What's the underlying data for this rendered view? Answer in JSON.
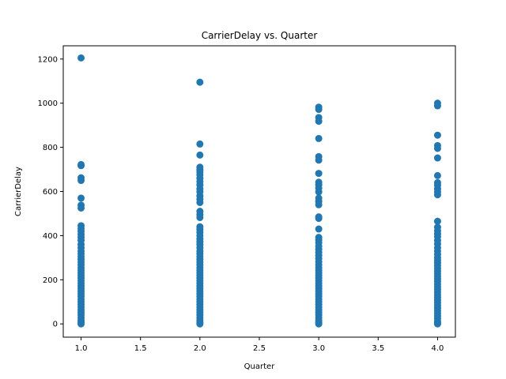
{
  "chart_data": {
    "type": "scatter",
    "title": "CarrierDelay vs. Quarter",
    "xlabel": "Quarter",
    "ylabel": "CarrierDelay",
    "xlim": [
      0.85,
      4.15
    ],
    "ylim": [
      -60,
      1260
    ],
    "xticks": [
      1.0,
      1.5,
      2.0,
      2.5,
      3.0,
      3.5,
      4.0
    ],
    "xtick_labels": [
      "1.0",
      "1.5",
      "2.0",
      "2.5",
      "3.0",
      "3.5",
      "4.0"
    ],
    "yticks": [
      0,
      200,
      400,
      600,
      800,
      1000,
      1200
    ],
    "ytick_labels": [
      "0",
      "200",
      "400",
      "600",
      "800",
      "1000",
      "1200"
    ],
    "grid": false,
    "legend": "none",
    "marker_color": "#1f77b4",
    "series": [
      {
        "points": [
          [
            1.0,
            1205
          ],
          [
            1.0,
            722
          ],
          [
            1.0,
            717
          ],
          [
            1.0,
            662
          ],
          [
            1.0,
            650
          ],
          [
            1.0,
            570
          ],
          [
            1.0,
            538
          ],
          [
            1.0,
            525
          ],
          [
            1.0,
            445
          ],
          [
            1.0,
            432
          ],
          [
            1.0,
            420
          ],
          [
            1.0,
            405
          ],
          [
            1.0,
            392
          ],
          [
            1.0,
            378
          ],
          [
            1.0,
            360
          ],
          [
            1.0,
            345
          ],
          [
            1.0,
            330
          ],
          [
            1.0,
            318
          ],
          [
            1.0,
            305
          ],
          [
            1.0,
            292
          ],
          [
            1.0,
            280
          ],
          [
            1.0,
            268
          ],
          [
            1.0,
            255
          ],
          [
            1.0,
            243
          ],
          [
            1.0,
            232
          ],
          [
            1.0,
            220
          ],
          [
            1.0,
            208
          ],
          [
            1.0,
            196
          ],
          [
            1.0,
            184
          ],
          [
            1.0,
            172
          ],
          [
            1.0,
            160
          ],
          [
            1.0,
            148
          ],
          [
            1.0,
            136
          ],
          [
            1.0,
            124
          ],
          [
            1.0,
            112
          ],
          [
            1.0,
            100
          ],
          [
            1.0,
            88
          ],
          [
            1.0,
            76
          ],
          [
            1.0,
            64
          ],
          [
            1.0,
            52
          ],
          [
            1.0,
            40
          ],
          [
            1.0,
            28
          ],
          [
            1.0,
            16
          ],
          [
            1.0,
            6
          ],
          [
            1.0,
            0
          ],
          [
            2.0,
            1095
          ],
          [
            2.0,
            815
          ],
          [
            2.0,
            765
          ],
          [
            2.0,
            710
          ],
          [
            2.0,
            698
          ],
          [
            2.0,
            688
          ],
          [
            2.0,
            676
          ],
          [
            2.0,
            660
          ],
          [
            2.0,
            645
          ],
          [
            2.0,
            630
          ],
          [
            2.0,
            612
          ],
          [
            2.0,
            598
          ],
          [
            2.0,
            580
          ],
          [
            2.0,
            565
          ],
          [
            2.0,
            550
          ],
          [
            2.0,
            510
          ],
          [
            2.0,
            495
          ],
          [
            2.0,
            482
          ],
          [
            2.0,
            440
          ],
          [
            2.0,
            428
          ],
          [
            2.0,
            415
          ],
          [
            2.0,
            400
          ],
          [
            2.0,
            385
          ],
          [
            2.0,
            372
          ],
          [
            2.0,
            360
          ],
          [
            2.0,
            345
          ],
          [
            2.0,
            330
          ],
          [
            2.0,
            318
          ],
          [
            2.0,
            305
          ],
          [
            2.0,
            292
          ],
          [
            2.0,
            280
          ],
          [
            2.0,
            268
          ],
          [
            2.0,
            255
          ],
          [
            2.0,
            243
          ],
          [
            2.0,
            232
          ],
          [
            2.0,
            220
          ],
          [
            2.0,
            208
          ],
          [
            2.0,
            196
          ],
          [
            2.0,
            184
          ],
          [
            2.0,
            172
          ],
          [
            2.0,
            160
          ],
          [
            2.0,
            148
          ],
          [
            2.0,
            136
          ],
          [
            2.0,
            124
          ],
          [
            2.0,
            112
          ],
          [
            2.0,
            100
          ],
          [
            2.0,
            88
          ],
          [
            2.0,
            76
          ],
          [
            2.0,
            64
          ],
          [
            2.0,
            52
          ],
          [
            2.0,
            40
          ],
          [
            2.0,
            28
          ],
          [
            2.0,
            16
          ],
          [
            2.0,
            6
          ],
          [
            2.0,
            0
          ],
          [
            3.0,
            982
          ],
          [
            3.0,
            972
          ],
          [
            3.0,
            935
          ],
          [
            3.0,
            918
          ],
          [
            3.0,
            840
          ],
          [
            3.0,
            758
          ],
          [
            3.0,
            742
          ],
          [
            3.0,
            682
          ],
          [
            3.0,
            642
          ],
          [
            3.0,
            630
          ],
          [
            3.0,
            615
          ],
          [
            3.0,
            598
          ],
          [
            3.0,
            570
          ],
          [
            3.0,
            555
          ],
          [
            3.0,
            540
          ],
          [
            3.0,
            485
          ],
          [
            3.0,
            478
          ],
          [
            3.0,
            430
          ],
          [
            3.0,
            392
          ],
          [
            3.0,
            380
          ],
          [
            3.0,
            368
          ],
          [
            3.0,
            352
          ],
          [
            3.0,
            338
          ],
          [
            3.0,
            324
          ],
          [
            3.0,
            310
          ],
          [
            3.0,
            296
          ],
          [
            3.0,
            282
          ],
          [
            3.0,
            268
          ],
          [
            3.0,
            255
          ],
          [
            3.0,
            243
          ],
          [
            3.0,
            232
          ],
          [
            3.0,
            220
          ],
          [
            3.0,
            208
          ],
          [
            3.0,
            196
          ],
          [
            3.0,
            184
          ],
          [
            3.0,
            172
          ],
          [
            3.0,
            160
          ],
          [
            3.0,
            148
          ],
          [
            3.0,
            136
          ],
          [
            3.0,
            124
          ],
          [
            3.0,
            112
          ],
          [
            3.0,
            100
          ],
          [
            3.0,
            88
          ],
          [
            3.0,
            76
          ],
          [
            3.0,
            64
          ],
          [
            3.0,
            52
          ],
          [
            3.0,
            40
          ],
          [
            3.0,
            28
          ],
          [
            3.0,
            16
          ],
          [
            3.0,
            6
          ],
          [
            3.0,
            0
          ],
          [
            4.0,
            1000
          ],
          [
            4.0,
            988
          ],
          [
            4.0,
            855
          ],
          [
            4.0,
            808
          ],
          [
            4.0,
            795
          ],
          [
            4.0,
            752
          ],
          [
            4.0,
            672
          ],
          [
            4.0,
            640
          ],
          [
            4.0,
            628
          ],
          [
            4.0,
            612
          ],
          [
            4.0,
            598
          ],
          [
            4.0,
            585
          ],
          [
            4.0,
            465
          ],
          [
            4.0,
            438
          ],
          [
            4.0,
            422
          ],
          [
            4.0,
            408
          ],
          [
            4.0,
            395
          ],
          [
            4.0,
            378
          ],
          [
            4.0,
            362
          ],
          [
            4.0,
            345
          ],
          [
            4.0,
            330
          ],
          [
            4.0,
            315
          ],
          [
            4.0,
            300
          ],
          [
            4.0,
            288
          ],
          [
            4.0,
            276
          ],
          [
            4.0,
            264
          ],
          [
            4.0,
            252
          ],
          [
            4.0,
            240
          ],
          [
            4.0,
            228
          ],
          [
            4.0,
            216
          ],
          [
            4.0,
            204
          ],
          [
            4.0,
            192
          ],
          [
            4.0,
            180
          ],
          [
            4.0,
            168
          ],
          [
            4.0,
            156
          ],
          [
            4.0,
            144
          ],
          [
            4.0,
            132
          ],
          [
            4.0,
            120
          ],
          [
            4.0,
            108
          ],
          [
            4.0,
            96
          ],
          [
            4.0,
            84
          ],
          [
            4.0,
            72
          ],
          [
            4.0,
            60
          ],
          [
            4.0,
            48
          ],
          [
            4.0,
            36
          ],
          [
            4.0,
            24
          ],
          [
            4.0,
            12
          ],
          [
            4.0,
            4
          ],
          [
            4.0,
            0
          ]
        ]
      }
    ]
  }
}
